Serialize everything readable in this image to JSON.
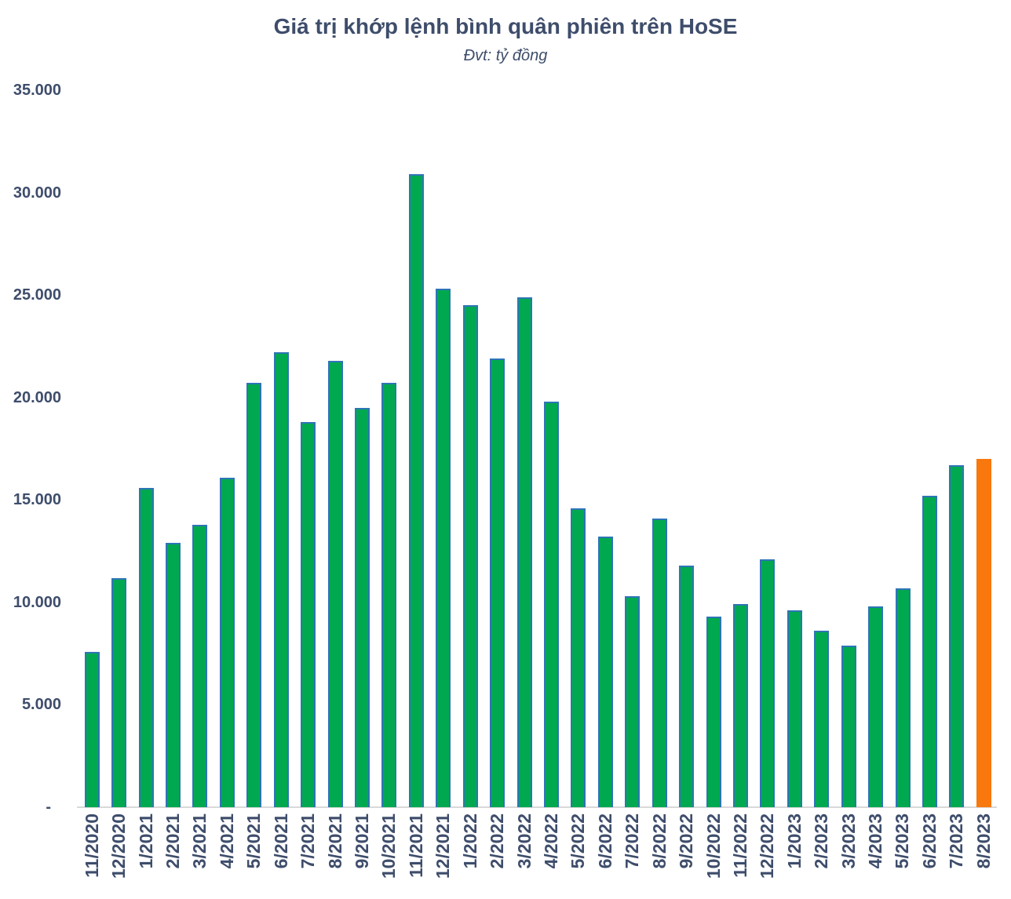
{
  "chart_data": {
    "type": "bar",
    "title": "Giá trị khớp lệnh bình quân phiên trên HoSE",
    "subtitle": "Đvt: tỷ đồng",
    "ylabel": "tỷ đồng",
    "xlabel": "",
    "ylim": [
      0,
      35000
    ],
    "grid": false,
    "legend": "none",
    "categories": [
      "11/2020",
      "12/2020",
      "1/2021",
      "2/2021",
      "3/2021",
      "4/2021",
      "5/2021",
      "6/2021",
      "7/2021",
      "8/2021",
      "9/2021",
      "10/2021",
      "11/2021",
      "12/2021",
      "1/2022",
      "2/2022",
      "3/2022",
      "4/2022",
      "5/2022",
      "6/2022",
      "7/2022",
      "8/2022",
      "9/2022",
      "10/2022",
      "11/2022",
      "12/2022",
      "1/2023",
      "2/2023",
      "3/2023",
      "4/2023",
      "5/2023",
      "6/2023",
      "7/2023",
      "8/2023"
    ],
    "values": [
      7600,
      11200,
      15600,
      12900,
      13800,
      16100,
      20700,
      22200,
      18800,
      21800,
      19500,
      20700,
      30900,
      25300,
      24500,
      21900,
      24900,
      19800,
      14600,
      13200,
      10300,
      14100,
      11800,
      9300,
      9900,
      12100,
      9600,
      8600,
      7900,
      9800,
      10700,
      15200,
      16700,
      17000
    ],
    "highlight_index": 33,
    "y_ticks": [
      {
        "label": "35.000",
        "value": 35000
      },
      {
        "label": "30.000",
        "value": 30000
      },
      {
        "label": "25.000",
        "value": 25000
      },
      {
        "label": "20.000",
        "value": 20000
      },
      {
        "label": "15.000",
        "value": 15000
      },
      {
        "label": "10.000",
        "value": 10000
      },
      {
        "label": "5.000",
        "value": 5000
      },
      {
        "label": "-",
        "value": 0
      }
    ],
    "colors": {
      "bar_fill": "#00A94F",
      "bar_border": "#2E75B6",
      "highlight_fill": "#F8780D",
      "axis_line": "#D9D9D9",
      "text": "#3E4D6B"
    }
  }
}
